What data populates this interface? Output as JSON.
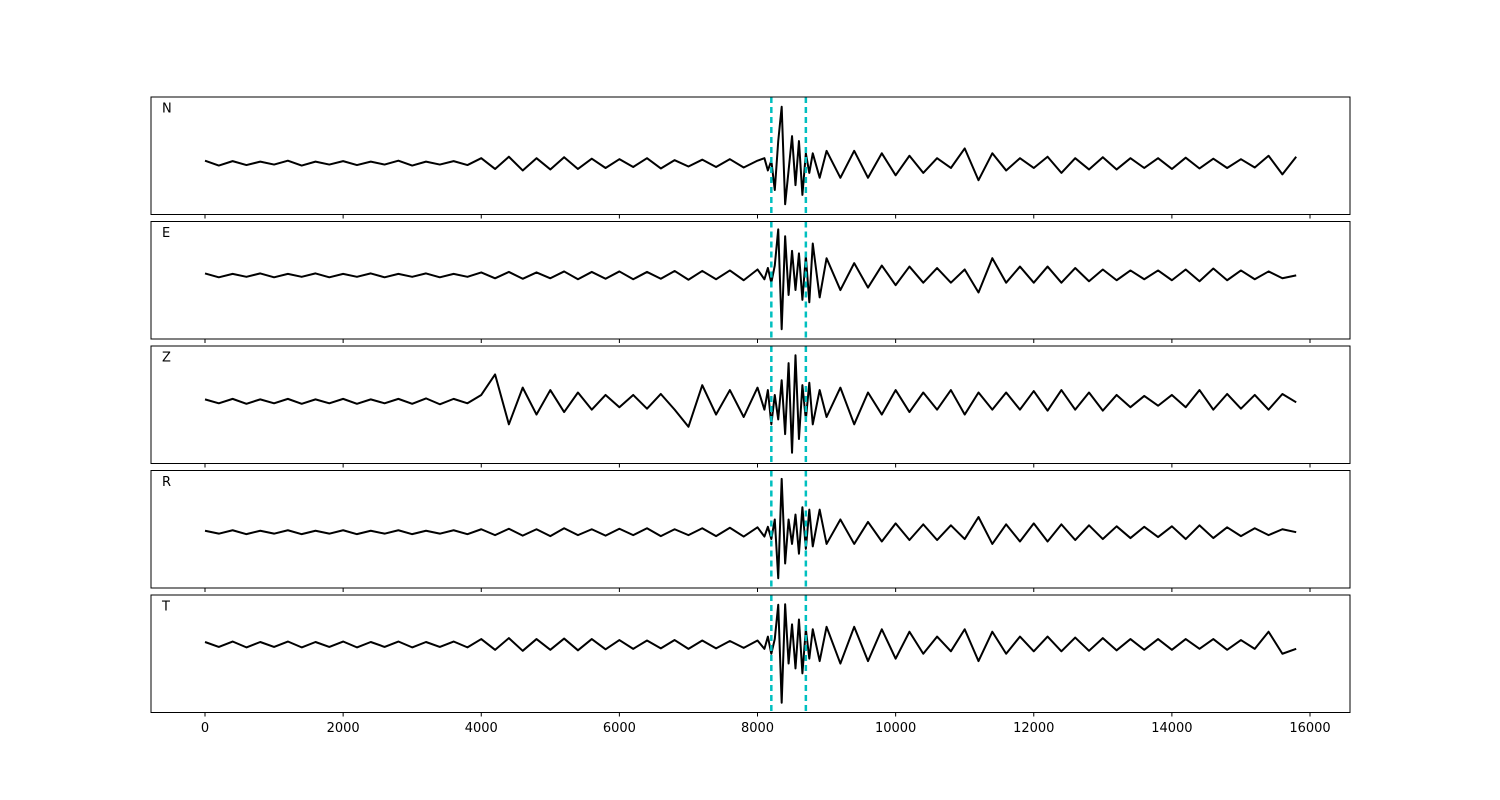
{
  "chart_data": {
    "type": "line",
    "layout": "stacked",
    "x": [
      0,
      200,
      400,
      600,
      800,
      1000,
      1200,
      1400,
      1600,
      1800,
      2000,
      2200,
      2400,
      2600,
      2800,
      3000,
      3200,
      3400,
      3600,
      3800,
      4000,
      4200,
      4400,
      4600,
      4800,
      5000,
      5200,
      5400,
      5600,
      5800,
      6000,
      6200,
      6400,
      6600,
      6800,
      7000,
      7200,
      7400,
      7600,
      7800,
      8000,
      8100,
      8150,
      8200,
      8250,
      8300,
      8350,
      8400,
      8450,
      8500,
      8550,
      8600,
      8650,
      8700,
      8750,
      8800,
      8900,
      9000,
      9200,
      9400,
      9600,
      9800,
      10000,
      10200,
      10400,
      10600,
      10800,
      11000,
      11200,
      11400,
      11600,
      11800,
      12000,
      12200,
      12400,
      12600,
      12800,
      13000,
      13200,
      13400,
      13600,
      13800,
      14000,
      14200,
      14400,
      14600,
      14800,
      15000,
      15200,
      15400,
      15600,
      15800
    ],
    "series": [
      {
        "name": "N",
        "color": "#000000",
        "values": [
          -0.1,
          -0.2,
          -0.11,
          -0.19,
          -0.12,
          -0.18,
          -0.1,
          -0.2,
          -0.12,
          -0.18,
          -0.11,
          -0.19,
          -0.12,
          -0.18,
          -0.1,
          -0.2,
          -0.12,
          -0.18,
          -0.11,
          -0.19,
          -0.05,
          -0.27,
          -0.02,
          -0.3,
          -0.05,
          -0.28,
          -0.03,
          -0.27,
          -0.06,
          -0.25,
          -0.07,
          -0.23,
          -0.05,
          -0.26,
          -0.09,
          -0.22,
          -0.08,
          -0.23,
          -0.07,
          -0.24,
          -0.1,
          -0.05,
          -0.3,
          -0.1,
          -0.7,
          0.3,
          1.0,
          -0.99,
          -0.3,
          0.4,
          -0.6,
          0.3,
          -0.8,
          0.05,
          -0.35,
          0.05,
          -0.45,
          0.1,
          -0.45,
          0.1,
          -0.45,
          0.05,
          -0.4,
          0.0,
          -0.35,
          -0.05,
          -0.25,
          0.15,
          -0.5,
          0.05,
          -0.3,
          -0.05,
          -0.25,
          -0.02,
          -0.35,
          -0.05,
          -0.28,
          -0.03,
          -0.28,
          -0.05,
          -0.25,
          -0.05,
          -0.27,
          -0.04,
          -0.26,
          -0.06,
          -0.25,
          -0.07,
          -0.24,
          0.0,
          -0.38,
          -0.02
        ]
      },
      {
        "name": "E",
        "color": "#000000",
        "values": [
          0.14,
          0.06,
          0.13,
          0.07,
          0.14,
          0.06,
          0.13,
          0.07,
          0.14,
          0.06,
          0.13,
          0.07,
          0.14,
          0.06,
          0.13,
          0.07,
          0.14,
          0.06,
          0.13,
          0.07,
          0.16,
          0.04,
          0.17,
          0.03,
          0.16,
          0.04,
          0.18,
          0.02,
          0.17,
          0.03,
          0.18,
          0.02,
          0.17,
          0.03,
          0.19,
          0.01,
          0.19,
          0.02,
          0.2,
          0.0,
          0.22,
          0.02,
          0.25,
          -0.05,
          0.3,
          1.04,
          -1.0,
          0.9,
          -0.3,
          0.6,
          -0.2,
          0.55,
          -0.4,
          0.5,
          -0.45,
          0.75,
          -0.35,
          0.45,
          -0.2,
          0.35,
          -0.15,
          0.3,
          -0.1,
          0.28,
          -0.05,
          0.25,
          -0.05,
          0.22,
          -0.25,
          0.45,
          -0.05,
          0.28,
          -0.05,
          0.28,
          -0.05,
          0.25,
          -0.02,
          0.22,
          0.0,
          0.2,
          0.02,
          0.2,
          0.0,
          0.22,
          -0.02,
          0.24,
          0.0,
          0.2,
          0.02,
          0.18,
          0.04,
          0.1
        ]
      },
      {
        "name": "Z",
        "color": "#000000",
        "values": [
          0.11,
          0.03,
          0.12,
          0.02,
          0.11,
          0.03,
          0.12,
          0.02,
          0.11,
          0.03,
          0.12,
          0.02,
          0.11,
          0.03,
          0.12,
          0.02,
          0.13,
          0.01,
          0.12,
          0.03,
          0.2,
          0.62,
          -0.4,
          0.35,
          -0.2,
          0.3,
          -0.15,
          0.25,
          -0.1,
          0.2,
          -0.05,
          0.2,
          -0.08,
          0.22,
          -0.1,
          -0.45,
          0.4,
          -0.2,
          0.3,
          -0.25,
          0.35,
          -0.1,
          0.3,
          -0.4,
          0.2,
          -0.3,
          0.5,
          -0.6,
          0.85,
          -0.98,
          1.01,
          -0.7,
          0.4,
          -0.3,
          0.45,
          -0.4,
          0.3,
          -0.25,
          0.35,
          -0.4,
          0.25,
          -0.2,
          0.3,
          -0.15,
          0.25,
          -0.1,
          0.3,
          -0.2,
          0.25,
          -0.1,
          0.25,
          -0.1,
          0.28,
          -0.12,
          0.3,
          -0.1,
          0.25,
          -0.12,
          0.2,
          -0.05,
          0.18,
          -0.02,
          0.2,
          -0.05,
          0.3,
          -0.1,
          0.22,
          -0.08,
          0.2,
          -0.1,
          0.22,
          0.05
        ]
      },
      {
        "name": "R",
        "color": "#000000",
        "values": [
          -0.03,
          -0.09,
          -0.02,
          -0.1,
          -0.03,
          -0.09,
          -0.02,
          -0.1,
          -0.03,
          -0.09,
          -0.02,
          -0.1,
          -0.03,
          -0.09,
          -0.02,
          -0.1,
          -0.03,
          -0.09,
          -0.02,
          -0.1,
          0.0,
          -0.12,
          0.01,
          -0.13,
          0.0,
          -0.14,
          0.02,
          -0.12,
          0.0,
          -0.13,
          0.01,
          -0.12,
          0.02,
          -0.14,
          0.0,
          -0.12,
          0.02,
          -0.14,
          0.03,
          -0.15,
          0.04,
          -0.15,
          0.05,
          -0.2,
          0.2,
          -1.0,
          1.03,
          -0.7,
          0.2,
          -0.3,
          0.3,
          -0.5,
          0.45,
          -0.4,
          0.4,
          -0.35,
          0.4,
          -0.3,
          0.2,
          -0.3,
          0.15,
          -0.25,
          0.12,
          -0.22,
          0.1,
          -0.22,
          0.08,
          -0.2,
          0.25,
          -0.3,
          0.1,
          -0.25,
          0.12,
          -0.25,
          0.1,
          -0.22,
          0.08,
          -0.2,
          0.06,
          -0.18,
          0.05,
          -0.16,
          0.06,
          -0.2,
          0.08,
          -0.18,
          0.04,
          -0.14,
          0.02,
          -0.12,
          0.0,
          -0.06
        ]
      },
      {
        "name": "T",
        "color": "#000000",
        "values": [
          0.24,
          0.14,
          0.25,
          0.13,
          0.24,
          0.14,
          0.25,
          0.13,
          0.24,
          0.14,
          0.25,
          0.13,
          0.24,
          0.14,
          0.25,
          0.13,
          0.24,
          0.14,
          0.25,
          0.13,
          0.3,
          0.08,
          0.32,
          0.06,
          0.3,
          0.08,
          0.31,
          0.07,
          0.3,
          0.09,
          0.28,
          0.1,
          0.27,
          0.11,
          0.28,
          0.1,
          0.27,
          0.11,
          0.26,
          0.12,
          0.27,
          0.1,
          0.35,
          0.0,
          0.3,
          1.0,
          -1.0,
          1.01,
          -0.2,
          0.6,
          -0.3,
          0.7,
          -0.4,
          0.5,
          -0.1,
          0.5,
          -0.15,
          0.55,
          -0.2,
          0.55,
          -0.15,
          0.5,
          -0.1,
          0.45,
          0.0,
          0.35,
          0.05,
          0.5,
          -0.15,
          0.45,
          0.0,
          0.35,
          0.05,
          0.35,
          0.05,
          0.33,
          0.06,
          0.32,
          0.07,
          0.3,
          0.08,
          0.3,
          0.08,
          0.3,
          0.1,
          0.3,
          0.08,
          0.28,
          0.1,
          0.45,
          0.0,
          0.1
        ]
      }
    ],
    "xlim": [
      -782,
      16579
    ],
    "xticks": [
      0,
      2000,
      4000,
      6000,
      8000,
      10000,
      12000,
      14000,
      16000
    ],
    "ylim": [
      -1.2,
      1.2
    ],
    "vlines": {
      "values": [
        8200,
        8700
      ],
      "color": "#00bfbf"
    }
  }
}
